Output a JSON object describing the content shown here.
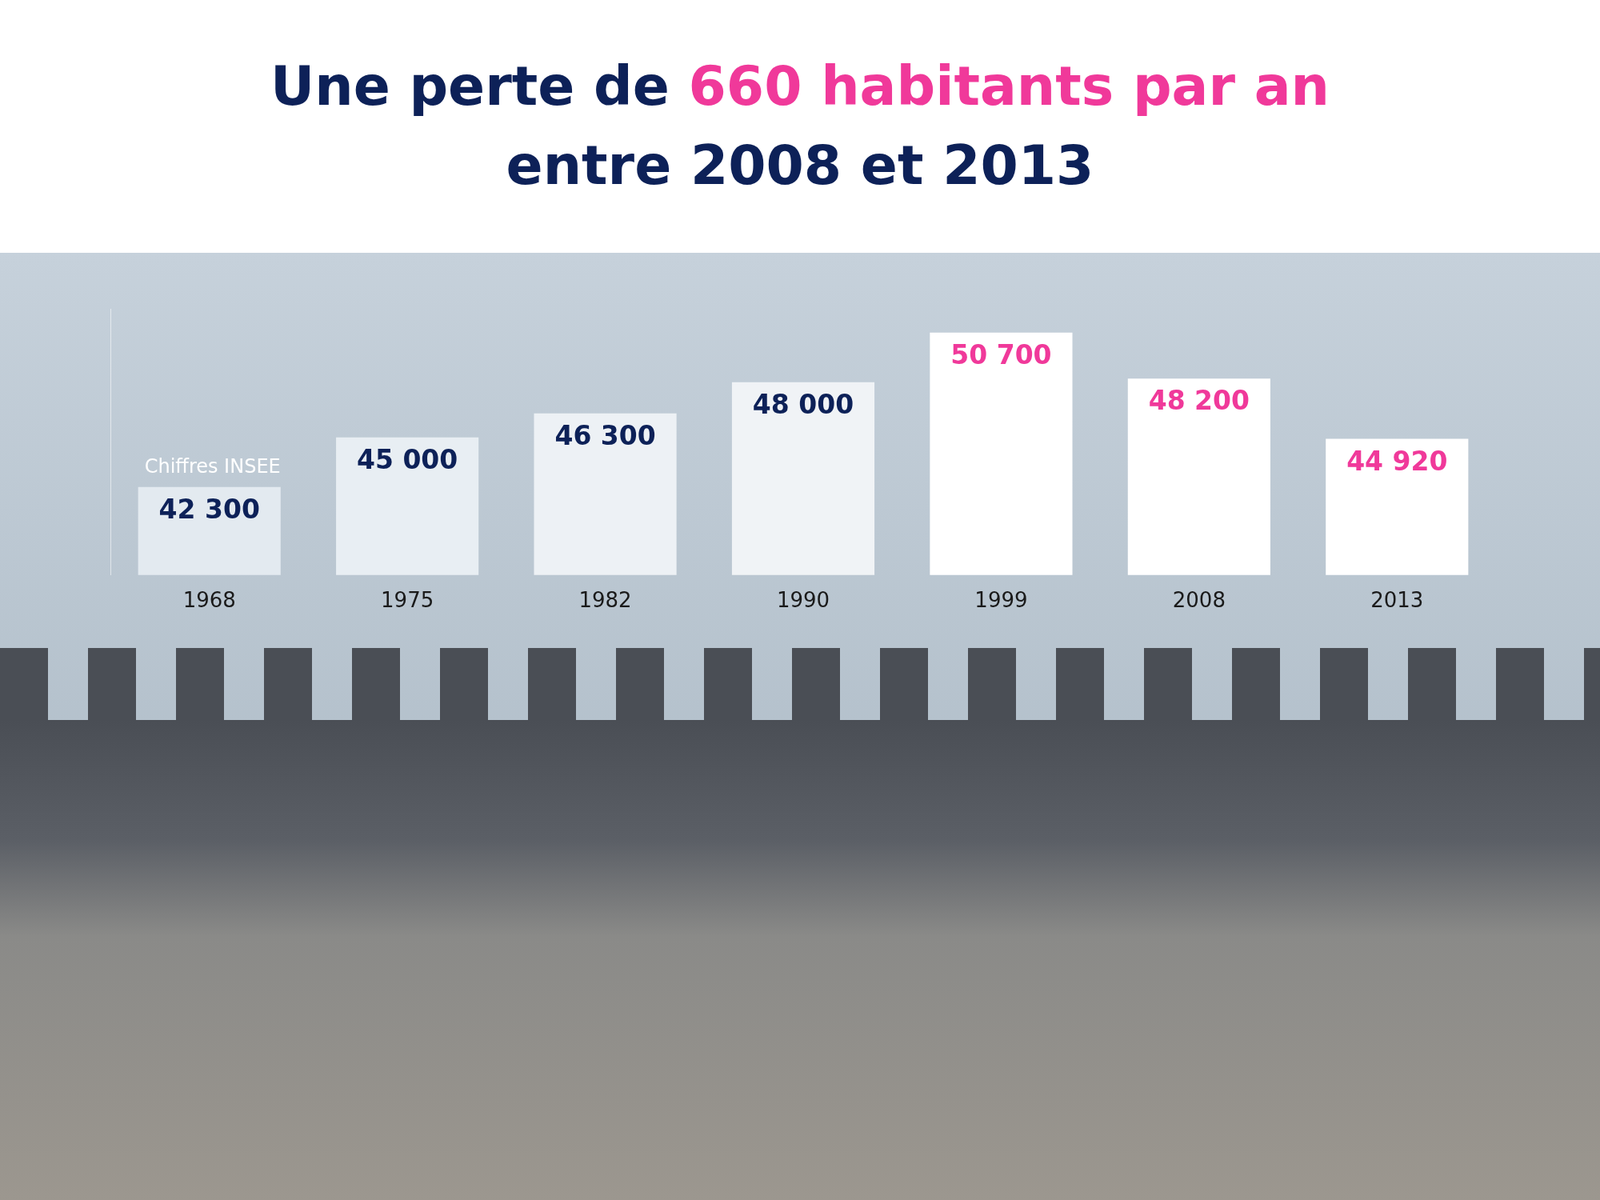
{
  "chart_data": {
    "type": "bar",
    "title": "Une perte de 660 habitants par an entre 2008 et 2013",
    "title_highlight": "660 habitants par an",
    "annotation": "Chiffres INSEE",
    "categories": [
      "1968",
      "1975",
      "1982",
      "1990",
      "1999",
      "2008",
      "2013"
    ],
    "values": [
      42300,
      45000,
      46300,
      48000,
      50700,
      48200,
      44920
    ],
    "value_labels": [
      "42 300",
      "45 000",
      "46 300",
      "48 000",
      "50 700",
      "48 200",
      "44 920"
    ],
    "colors": [
      "#e3eaf0",
      "#e8eef3",
      "#edf1f5",
      "#f0f3f6",
      "#ffffff",
      "#ffffff",
      "#ffffff"
    ],
    "ylim": [
      37500,
      52000
    ],
    "data_labels": true,
    "tick_labels": "x",
    "grid": false
  }
}
